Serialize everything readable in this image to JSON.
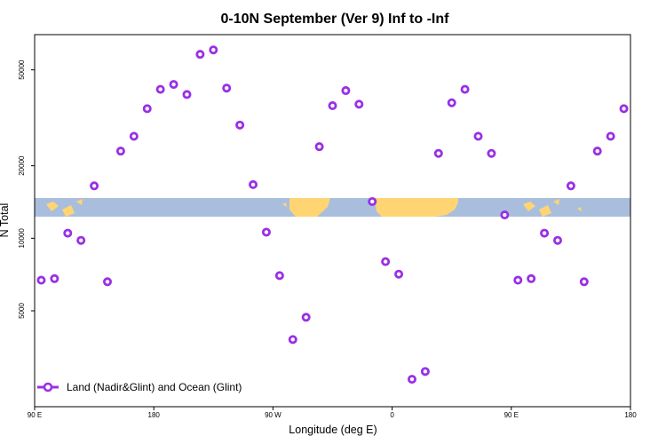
{
  "chart_data": {
    "type": "scatter",
    "title": "0-10N September (Ver 9)   Inf to -Inf",
    "xlabel": "Longitude (deg E)",
    "ylabel": "N Total",
    "x_ticks": [
      "90 E",
      "180",
      "90 W",
      "0",
      "90 E",
      "180"
    ],
    "x_tick_values": [
      90,
      180,
      270,
      360,
      450,
      540
    ],
    "xlim": [
      90,
      540
    ],
    "y_scale": "log",
    "y_ticks": [
      "5000",
      "10000",
      "20000",
      "50000"
    ],
    "y_tick_values": [
      5000,
      10000,
      20000,
      50000
    ],
    "ylim": [
      2000,
      70000
    ],
    "grid": false,
    "legend_position": "bottom-left",
    "series": [
      {
        "name": "Land (Nadir&Glint) and Ocean (Glint)",
        "color": "#9a2fe6",
        "x": [
          95,
          105,
          115,
          125,
          135,
          145,
          155,
          165,
          175,
          185,
          195,
          205,
          215,
          225,
          235,
          245,
          255,
          265,
          275,
          285,
          295,
          305,
          315,
          325,
          335,
          345,
          355,
          365,
          375,
          385,
          395,
          405,
          415,
          425,
          435,
          445,
          455,
          465,
          475,
          485,
          495,
          505,
          515,
          525,
          535
        ],
        "y": [
          6700,
          6800,
          10500,
          9800,
          16500,
          6600,
          23000,
          26500,
          34500,
          41500,
          43500,
          39500,
          58000,
          60500,
          42000,
          29500,
          16700,
          10600,
          7000,
          3800,
          4700,
          24000,
          35500,
          41000,
          36000,
          14200,
          8000,
          7100,
          2600,
          2800,
          22500,
          36500,
          41500,
          26500,
          22500,
          12500,
          6700,
          6800,
          10500,
          9800,
          16500,
          6600,
          23000,
          26500,
          34500
        ]
      }
    ]
  },
  "map_strip": {
    "ocean_color": "#a9bedc",
    "land_color": "#ffd574"
  }
}
